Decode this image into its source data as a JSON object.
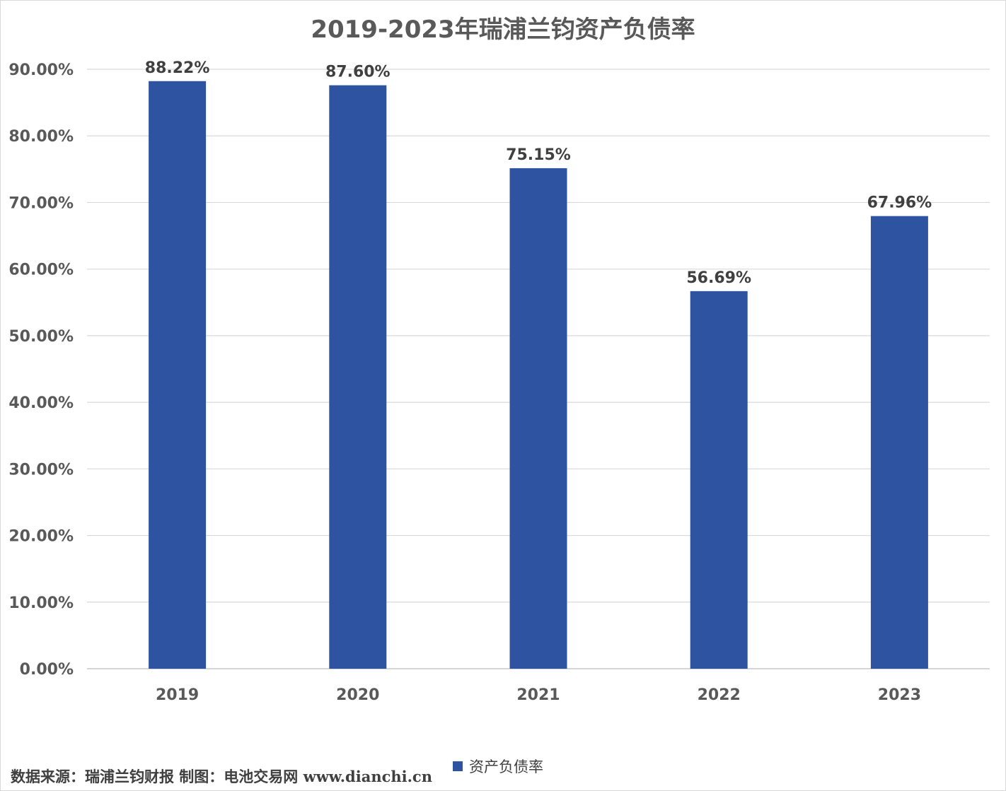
{
  "chart_data": {
    "type": "bar",
    "title": "2019-2023年瑞浦兰钧资产负债率",
    "categories": [
      "2019",
      "2020",
      "2021",
      "2022",
      "2023"
    ],
    "series": [
      {
        "name": "资产负债率",
        "values": [
          88.22,
          87.6,
          75.15,
          56.69,
          67.96
        ],
        "labels": [
          "88.22%",
          "87.60%",
          "75.15%",
          "56.69%",
          "67.96%"
        ],
        "color": "#2E54A1"
      }
    ],
    "ylim": [
      0,
      90
    ],
    "yticks": [
      "0.00%",
      "10.00%",
      "20.00%",
      "30.00%",
      "40.00%",
      "50.00%",
      "60.00%",
      "70.00%",
      "80.00%",
      "90.00%"
    ],
    "grid": true,
    "legend_position": "bottom",
    "xlabel": "",
    "ylabel": ""
  },
  "footer": {
    "source_note": "数据来源：瑞浦兰钧财报 制图：电池交易网 www.dianchi.cn"
  }
}
